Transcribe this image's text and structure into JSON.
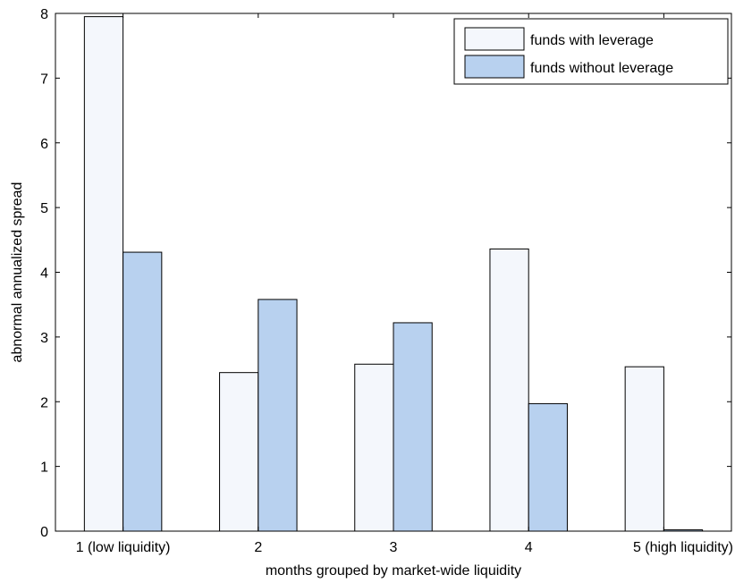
{
  "chart_data": {
    "type": "bar",
    "title": "",
    "xlabel": "months grouped by market-wide liquidity",
    "ylabel": "abnormal annualized spread",
    "categories": [
      "1 (low liquidity)",
      "2",
      "3",
      "4",
      "5 (high liquidity)"
    ],
    "ylim": [
      0,
      8
    ],
    "yticks": [
      "0",
      "1",
      "2",
      "3",
      "4",
      "5",
      "6",
      "7",
      "8"
    ],
    "grid": false,
    "legend_position": "top-right",
    "series": [
      {
        "name": "funds with leverage",
        "color": "#f4f7fc",
        "values": [
          7.95,
          2.45,
          2.58,
          4.36,
          2.54
        ]
      },
      {
        "name": "funds without leverage",
        "color": "#b8d1ef",
        "values": [
          4.31,
          3.58,
          3.22,
          1.97,
          0.02
        ]
      }
    ]
  }
}
